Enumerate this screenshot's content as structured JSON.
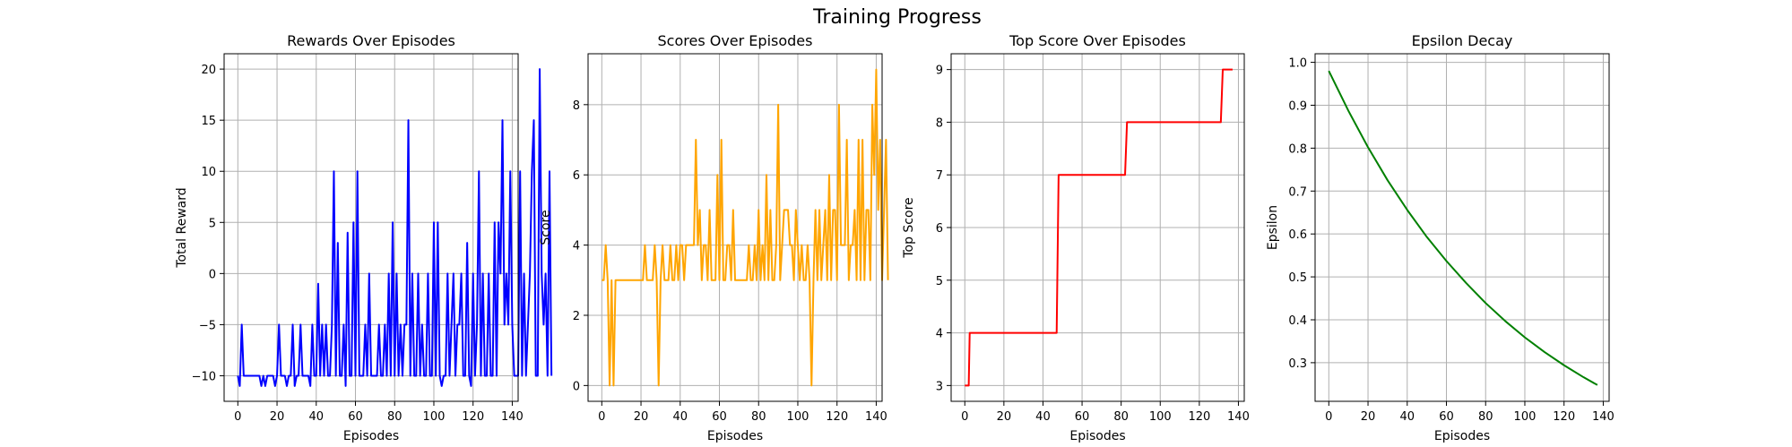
{
  "figure": {
    "title": "Training Progress"
  },
  "chart_data": [
    {
      "type": "line",
      "title": "Rewards Over Episodes",
      "xlabel": "Episodes",
      "ylabel": "Total Reward",
      "xlim": [
        -7,
        143
      ],
      "ylim": [
        -12.5,
        21.5
      ],
      "xticks": [
        0,
        20,
        40,
        60,
        80,
        100,
        120,
        140
      ],
      "yticks": [
        -10,
        -5,
        0,
        5,
        10,
        15,
        20
      ],
      "grid": true,
      "color": "#0000ff",
      "series": [
        {
          "values": [
            -10,
            -11,
            -5,
            -10,
            -10,
            -10,
            -10,
            -10,
            -10,
            -10,
            -10,
            -10,
            -11,
            -10,
            -11,
            -10,
            -10,
            -10,
            -10,
            -11,
            -10,
            -5,
            -10,
            -10,
            -10,
            -11,
            -10,
            -10,
            -5,
            -11,
            -10,
            -10,
            -5,
            -10,
            -10,
            -10,
            -10,
            -11,
            -5,
            -10,
            -10,
            -1,
            -10,
            -5,
            -10,
            -5,
            -10,
            -10,
            -5,
            10,
            -10,
            3,
            -10,
            -10,
            -5,
            -11,
            4,
            -10,
            -10,
            5,
            -10,
            10,
            -10,
            -10,
            -10,
            -5,
            -10,
            0,
            -10,
            -10,
            -10,
            -10,
            -5,
            -10,
            -10,
            -5,
            -10,
            0,
            -10,
            5,
            -10,
            0,
            -10,
            -5,
            -10,
            -5,
            -5,
            15,
            -10,
            0,
            -10,
            -10,
            0,
            -10,
            -5,
            -10,
            -10,
            0,
            -10,
            -10,
            5,
            -10,
            5,
            -10,
            -11,
            -10,
            -10,
            0,
            -10,
            -5,
            0,
            -10,
            -5,
            -5,
            0,
            -10,
            -10,
            3,
            -10,
            -11,
            0,
            -10,
            -5,
            10,
            -10,
            0,
            -10,
            -10,
            0,
            -10,
            -10,
            5,
            -10,
            5,
            0,
            15,
            -5,
            0,
            -5,
            10,
            -5,
            -10,
            -10,
            -10,
            10,
            -10,
            0,
            -10,
            -5,
            0,
            10,
            15,
            -10,
            -10,
            20,
            0,
            -5,
            0,
            -10,
            10,
            -10
          ]
        }
      ]
    },
    {
      "type": "line",
      "title": "Scores Over Episodes",
      "xlabel": "Episodes",
      "ylabel": "Score",
      "xlim": [
        -7,
        143
      ],
      "ylim": [
        -0.45,
        9.45
      ],
      "xticks": [
        0,
        20,
        40,
        60,
        80,
        100,
        120,
        140
      ],
      "yticks": [
        0,
        2,
        4,
        6,
        8
      ],
      "grid": true,
      "color": "#ffa500",
      "series": [
        {
          "values": [
            3,
            3,
            4,
            3,
            0,
            3,
            0,
            3,
            3,
            3,
            3,
            3,
            3,
            3,
            3,
            3,
            3,
            3,
            3,
            3,
            3,
            3,
            4,
            3,
            3,
            3,
            3,
            4,
            3,
            0,
            3,
            4,
            3,
            3,
            3,
            4,
            3,
            3,
            4,
            3,
            4,
            4,
            3,
            4,
            4,
            4,
            4,
            4,
            7,
            4,
            5,
            3,
            4,
            4,
            3,
            5,
            3,
            3,
            3,
            6,
            3,
            7,
            3,
            3,
            4,
            4,
            3,
            5,
            3,
            3,
            3,
            3,
            3,
            3,
            3,
            4,
            3,
            3,
            4,
            3,
            5,
            3,
            4,
            3,
            6,
            3,
            5,
            3,
            3,
            4,
            8,
            3,
            4,
            5,
            5,
            5,
            4,
            4,
            3,
            5,
            4,
            3,
            4,
            3,
            3,
            4,
            3,
            0,
            3,
            5,
            3,
            5,
            3,
            4,
            5,
            3,
            6,
            3,
            5,
            5,
            3,
            8,
            4,
            4,
            4,
            7,
            3,
            4,
            4,
            5,
            3,
            7,
            3,
            7,
            3,
            5,
            5,
            3,
            8,
            6,
            9,
            5,
            7,
            3,
            5,
            7,
            3
          ]
        }
      ]
    },
    {
      "type": "line",
      "title": "Top Score Over Episodes",
      "xlabel": "Episodes",
      "ylabel": "Top Score",
      "xlim": [
        -7,
        143
      ],
      "ylim": [
        2.7,
        9.3
      ],
      "xticks": [
        0,
        20,
        40,
        60,
        80,
        100,
        120,
        140
      ],
      "yticks": [
        3,
        4,
        5,
        6,
        7,
        8,
        9
      ],
      "grid": true,
      "color": "#ff0000",
      "series": [
        {
          "x": [
            0,
            2,
            2.5,
            47,
            48,
            82,
            83,
            131,
            132,
            137
          ],
          "values": [
            3,
            3,
            4,
            4,
            7,
            7,
            8,
            8,
            9,
            9
          ]
        }
      ]
    },
    {
      "type": "line",
      "title": "Epsilon Decay",
      "xlabel": "Episodes",
      "ylabel": "Epsilon",
      "xlim": [
        -7,
        143
      ],
      "ylim": [
        0.21,
        1.02
      ],
      "xticks": [
        0,
        20,
        40,
        60,
        80,
        100,
        120,
        140
      ],
      "yticks": [
        0.3,
        0.4,
        0.5,
        0.6,
        0.7,
        0.8,
        0.9,
        1.0
      ],
      "ytick_labels": [
        "0.3",
        "0.4",
        "0.5",
        "0.6",
        "0.7",
        "0.8",
        "0.9",
        "1.0"
      ],
      "grid": true,
      "color": "#008000",
      "series": [
        {
          "x": [
            0,
            10,
            20,
            30,
            40,
            50,
            60,
            70,
            80,
            90,
            100,
            110,
            120,
            130,
            137
          ],
          "values": [
            0.98,
            0.887,
            0.802,
            0.725,
            0.656,
            0.593,
            0.537,
            0.486,
            0.439,
            0.397,
            0.359,
            0.325,
            0.294,
            0.266,
            0.248
          ]
        }
      ]
    }
  ]
}
